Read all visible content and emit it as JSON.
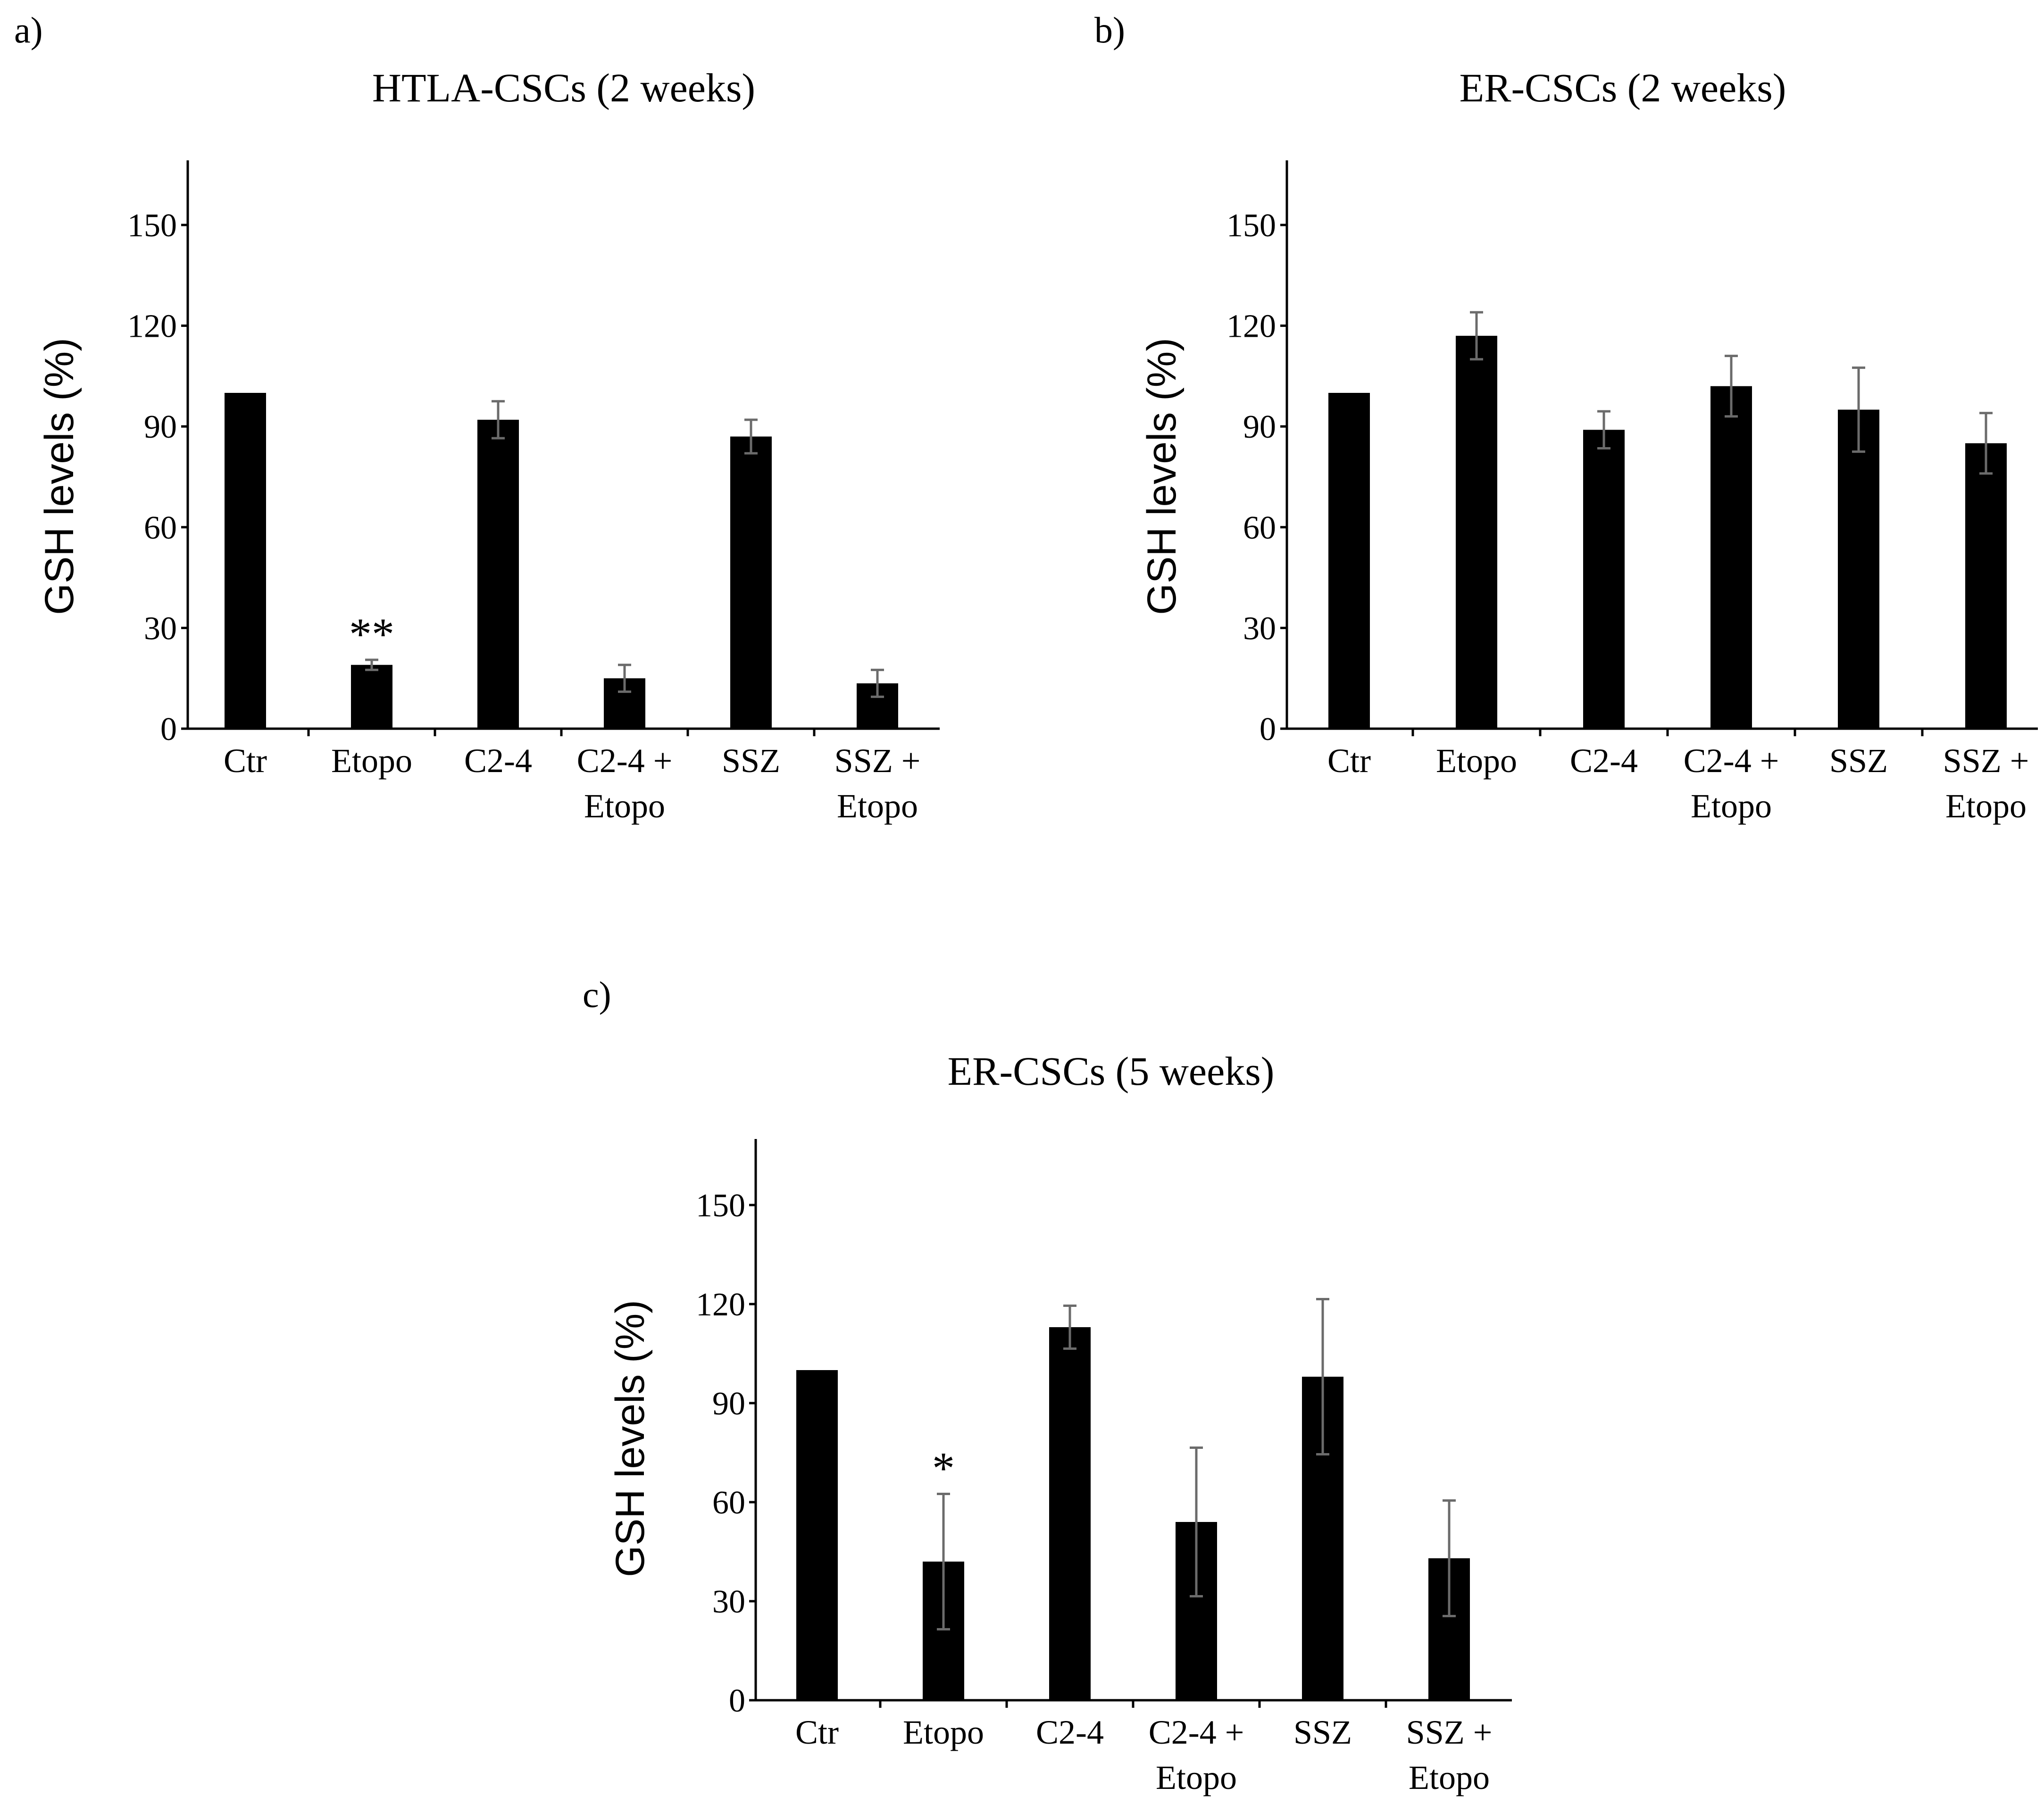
{
  "chart_data": [
    {
      "type": "bar",
      "panel": "a)",
      "title": "HTLA-CSCs (2 weeks)",
      "xlabel": "",
      "ylabel": "GSH levels (%)",
      "ylim": [
        0,
        170
      ],
      "yticks": [
        0,
        30,
        60,
        90,
        120,
        150
      ],
      "categories": [
        [
          "Ctr"
        ],
        [
          "Etopo"
        ],
        [
          "C2-4"
        ],
        [
          "C2-4 +",
          "Etopo"
        ],
        [
          "SSZ"
        ],
        [
          "SSZ +",
          "Etopo"
        ]
      ],
      "values": [
        100,
        19,
        92,
        15,
        87,
        13.5
      ],
      "errors": [
        0,
        1.5,
        5.5,
        4,
        5,
        4
      ],
      "annotations": [
        "",
        "**",
        "",
        "",
        "",
        ""
      ]
    },
    {
      "type": "bar",
      "panel": "b)",
      "title": "ER-CSCs (2 weeks)",
      "xlabel": "",
      "ylabel": "GSH levels (%)",
      "ylim": [
        0,
        170
      ],
      "yticks": [
        0,
        30,
        60,
        90,
        120,
        150
      ],
      "categories": [
        [
          "Ctr"
        ],
        [
          "Etopo"
        ],
        [
          "C2-4"
        ],
        [
          "C2-4 +",
          "Etopo"
        ],
        [
          "SSZ"
        ],
        [
          "SSZ +",
          "Etopo"
        ]
      ],
      "values": [
        100,
        117,
        89,
        102,
        95,
        85
      ],
      "errors": [
        0,
        7,
        5.5,
        9,
        12.5,
        9
      ],
      "annotations": [
        "",
        "",
        "",
        "",
        "",
        ""
      ]
    },
    {
      "type": "bar",
      "panel": "c)",
      "title": "ER-CSCs (5 weeks)",
      "xlabel": "",
      "ylabel": "GSH levels (%)",
      "ylim": [
        0,
        170
      ],
      "yticks": [
        0,
        30,
        60,
        90,
        120,
        150
      ],
      "categories": [
        [
          "Ctr"
        ],
        [
          "Etopo"
        ],
        [
          "C2-4"
        ],
        [
          "C2-4 +",
          "Etopo"
        ],
        [
          "SSZ"
        ],
        [
          "SSZ +",
          "Etopo"
        ]
      ],
      "values": [
        100,
        42,
        113,
        54,
        98,
        43
      ],
      "errors": [
        0,
        20.5,
        6.5,
        22.5,
        23.5,
        17.5
      ],
      "annotations": [
        "",
        "*",
        "",
        "",
        "",
        ""
      ]
    }
  ]
}
